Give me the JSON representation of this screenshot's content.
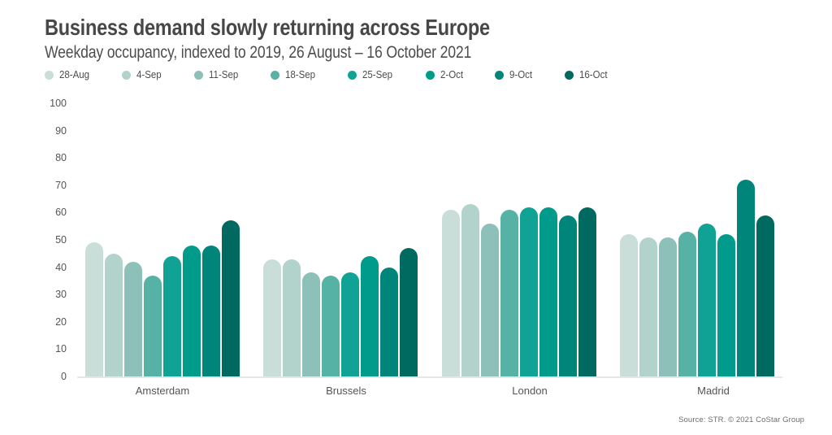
{
  "header": {
    "title": "Business demand slowly returning across Europe",
    "subtitle": "Weekday occupancy, indexed to 2019, 26 August – 16 October 2021"
  },
  "source_note": "Source: STR. © 2021 CoStar Group",
  "colors": {
    "title_text": "#474747",
    "axis_text": "#555555",
    "baseline": "#e7e7e7",
    "background": "#ffffff"
  },
  "chart_data": {
    "type": "bar",
    "title": "Business demand slowly returning across Europe",
    "subtitle": "Weekday occupancy, indexed to 2019, 26 August – 16 October 2021",
    "categories": [
      "Amsterdam",
      "Brussels",
      "London",
      "Madrid"
    ],
    "series": [
      {
        "name": "28-Aug",
        "color": "#c9ded9",
        "values": [
          49,
          43,
          61,
          52
        ]
      },
      {
        "name": "4-Sep",
        "color": "#b2d3cc",
        "values": [
          45,
          43,
          63,
          51
        ]
      },
      {
        "name": "11-Sep",
        "color": "#8dc0b8",
        "values": [
          42,
          38,
          56,
          51
        ]
      },
      {
        "name": "18-Sep",
        "color": "#55b2a4",
        "values": [
          37,
          37,
          61,
          53
        ]
      },
      {
        "name": "25-Sep",
        "color": "#10a294",
        "values": [
          44,
          38,
          62,
          56
        ]
      },
      {
        "name": "2-Oct",
        "color": "#009b8b",
        "values": [
          48,
          44,
          62,
          52
        ]
      },
      {
        "name": "9-Oct",
        "color": "#00857a",
        "values": [
          48,
          40,
          59,
          72
        ]
      },
      {
        "name": "16-Oct",
        "color": "#006a60",
        "values": [
          57,
          47,
          62,
          59
        ]
      }
    ],
    "ylim": [
      0,
      100
    ],
    "yticks": [
      0,
      10,
      20,
      30,
      40,
      50,
      60,
      70,
      80,
      90,
      100
    ],
    "grid": false,
    "legend_position": "top",
    "bar_cap": "rounded-top"
  }
}
